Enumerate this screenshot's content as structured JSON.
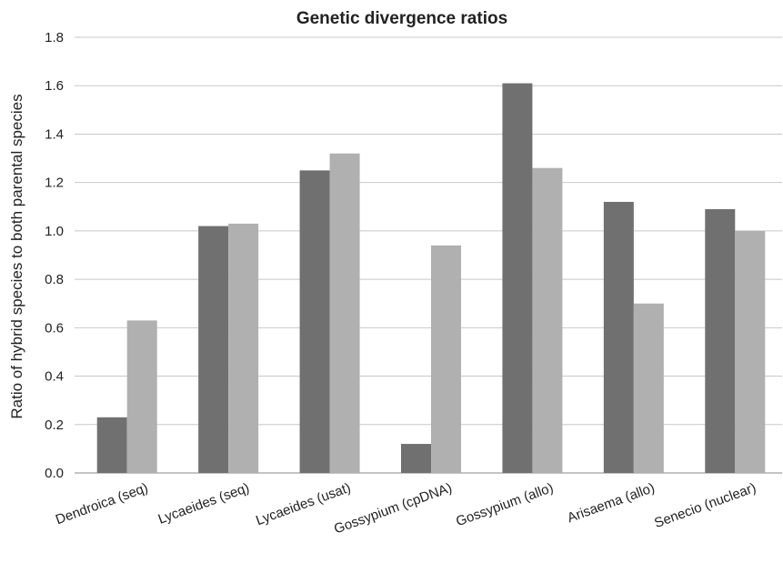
{
  "chart_data": {
    "type": "bar",
    "title": "Genetic divergence ratios",
    "xlabel": "",
    "ylabel": "Ratio of hybrid species to both parental species",
    "ylim": [
      0,
      1.8
    ],
    "yticks": [
      "0.0",
      "0.2",
      "0.4",
      "0.6",
      "0.8",
      "1.0",
      "1.2",
      "1.4",
      "1.6",
      "1.8"
    ],
    "grid": true,
    "legend": "none",
    "categories": [
      "Dendroica (seq)",
      "Lycaeides (seq)",
      "Lycaeides (usat)",
      "Gossypium (cpDNA)",
      "Gossypium (allo)",
      "Arisaema (allo)",
      "Senecio (nuclear)"
    ],
    "series": [
      {
        "color": "#707070",
        "values": [
          0.23,
          1.02,
          1.25,
          0.12,
          1.61,
          1.12,
          1.09
        ]
      },
      {
        "color": "#b0b0b0",
        "values": [
          0.63,
          1.03,
          1.32,
          0.94,
          1.26,
          0.7,
          1.0
        ]
      }
    ]
  }
}
